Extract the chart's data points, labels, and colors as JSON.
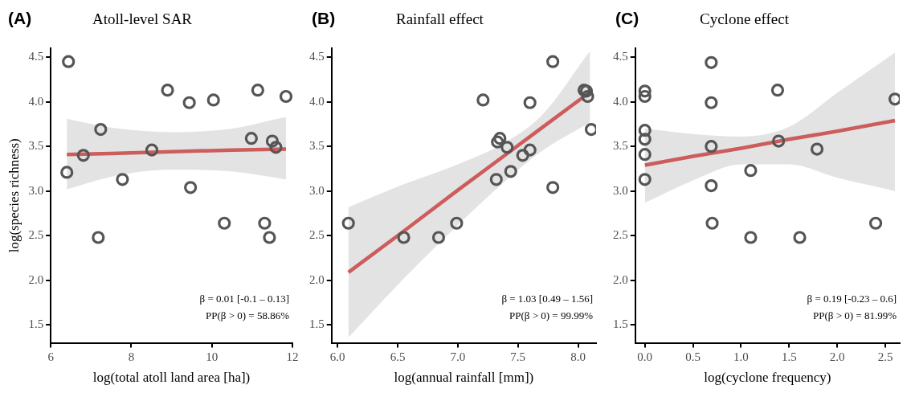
{
  "chart_data": [
    {
      "type": "scatter",
      "title": "Atoll-level SAR",
      "xlabel": "log(total atoll land area [ha])",
      "ylabel": "log(species richness)",
      "annotations": [
        "(A)",
        "β = 0.01 [-0.1 – 0.13]",
        "PP(β > 0) = 58.86%"
      ],
      "xlim": [
        6,
        12
      ],
      "xticks": [
        6,
        8,
        10,
        12
      ],
      "ylim": [
        1.3,
        4.6
      ],
      "yticks": [
        {
          "value": 1.5,
          "label": "1.5"
        },
        {
          "value": 2,
          "label": "2.0"
        },
        {
          "value": 2.5,
          "label": "2.5"
        },
        {
          "value": 3,
          "label": "3.0"
        },
        {
          "value": 3.5,
          "label": "3.5"
        },
        {
          "value": 4,
          "label": "4.0"
        },
        {
          "value": 4.5,
          "label": "4.5"
        }
      ],
      "legend": false,
      "marker": "circle",
      "series": [
        {
          "color": "#555555",
          "x": [
            6.44,
            6.4,
            6.81,
            7.24,
            7.18,
            7.78,
            8.51,
            8.9,
            9.44,
            9.47,
            10.04,
            10.31,
            10.98,
            11.14,
            11.31,
            11.43,
            11.5,
            11.59,
            11.84
          ],
          "values": [
            4.45,
            3.21,
            3.4,
            3.69,
            2.48,
            3.13,
            3.46,
            4.13,
            3.99,
            3.04,
            4.02,
            2.64,
            3.59,
            4.13,
            2.64,
            2.48,
            3.56,
            3.49,
            4.06
          ]
        },
        {
          "type": "line",
          "marker": "none",
          "color": "#cd5c5c",
          "x": [
            6.4,
            7.5,
            9,
            10.5,
            11.84
          ],
          "values": [
            3.41,
            3.42,
            3.44,
            3.46,
            3.47
          ],
          "lower": [
            3.02,
            3.16,
            3.24,
            3.22,
            3.13
          ],
          "upper": [
            3.81,
            3.71,
            3.66,
            3.7,
            3.83
          ]
        }
      ]
    },
    {
      "type": "scatter",
      "title": "Rainfall effect",
      "xlabel": "log(annual rainfall [mm])",
      "annotations": [
        "(B)",
        "β = 1.03 [0.49 – 1.56]",
        "PP(β > 0) = 99.99%"
      ],
      "xlim": [
        5.95,
        8.15
      ],
      "xticks": [
        {
          "value": 6,
          "label": "6.0"
        },
        {
          "value": 6.5,
          "label": "6.5"
        },
        {
          "value": 7,
          "label": "7.0"
        },
        {
          "value": 7.5,
          "label": "7.5"
        },
        {
          "value": 8,
          "label": "8.0"
        }
      ],
      "ylim": [
        1.3,
        4.6
      ],
      "yticks": [
        {
          "value": 1.5,
          "label": "1.5"
        },
        {
          "value": 2,
          "label": "2.0"
        },
        {
          "value": 2.5,
          "label": "2.5"
        },
        {
          "value": 3,
          "label": "3.0"
        },
        {
          "value": 3.5,
          "label": "3.5"
        },
        {
          "value": 4,
          "label": "4.0"
        },
        {
          "value": 4.5,
          "label": "4.5"
        }
      ],
      "legend": false,
      "marker": "circle",
      "series": [
        {
          "color": "#555555",
          "x": [
            6.09,
            6.55,
            6.84,
            6.99,
            7.21,
            7.32,
            7.33,
            7.35,
            7.41,
            7.44,
            7.54,
            7.6,
            7.6,
            7.79,
            7.79,
            8.05,
            8.07,
            8.08,
            8.11
          ],
          "values": [
            2.64,
            2.48,
            2.48,
            2.64,
            4.02,
            3.13,
            3.55,
            3.59,
            3.49,
            3.22,
            3.4,
            3.46,
            3.99,
            3.04,
            4.45,
            4.13,
            4.12,
            4.06,
            3.69
          ]
        },
        {
          "type": "line",
          "marker": "none",
          "color": "#cd5c5c",
          "x": [
            6.09,
            6.5,
            7.0,
            7.4,
            7.7,
            8.1
          ],
          "values": [
            2.09,
            2.5,
            3.01,
            3.41,
            3.71,
            4.11
          ],
          "lower": [
            1.36,
            1.95,
            2.62,
            3.12,
            3.45,
            3.77
          ],
          "upper": [
            2.82,
            3.05,
            3.3,
            3.55,
            3.85,
            4.57
          ]
        }
      ]
    },
    {
      "type": "scatter",
      "title": "Cyclone effect",
      "xlabel": "log(cyclone frequency)",
      "annotations": [
        "(C)",
        "β = 0.19 [-0.23 – 0.6]",
        "PP(β > 0) = 81.99%"
      ],
      "xlim": [
        -0.1,
        2.65
      ],
      "xticks": [
        {
          "value": 0,
          "label": "0.0"
        },
        {
          "value": 0.5,
          "label": "0.5"
        },
        {
          "value": 1,
          "label": "1.0"
        },
        {
          "value": 1.5,
          "label": "1.5"
        },
        {
          "value": 2,
          "label": "2.0"
        },
        {
          "value": 2.5,
          "label": "2.5"
        }
      ],
      "ylim": [
        1.3,
        4.6
      ],
      "yticks": [
        {
          "value": 1.5,
          "label": "1.5"
        },
        {
          "value": 2,
          "label": "2.0"
        },
        {
          "value": 2.5,
          "label": "2.5"
        },
        {
          "value": 3,
          "label": "3.0"
        },
        {
          "value": 3.5,
          "label": "3.5"
        },
        {
          "value": 4,
          "label": "4.0"
        },
        {
          "value": 4.5,
          "label": "4.5"
        }
      ],
      "legend": false,
      "marker": "circle",
      "series": [
        {
          "color": "#555555",
          "x": [
            0,
            0,
            0,
            0,
            0,
            0,
            0.69,
            0.69,
            0.69,
            0.69,
            0.7,
            1.1,
            1.1,
            1.38,
            1.39,
            1.61,
            1.79,
            2.4,
            2.6
          ],
          "values": [
            4.12,
            4.06,
            3.68,
            3.58,
            3.41,
            3.13,
            4.44,
            3.99,
            3.5,
            3.06,
            2.64,
            3.23,
            2.48,
            4.13,
            3.56,
            2.48,
            3.47,
            2.64,
            4.03
          ]
        },
        {
          "type": "line",
          "marker": "none",
          "color": "#cd5c5c",
          "x": [
            0,
            0.5,
            1,
            1.5,
            2,
            2.6
          ],
          "values": [
            3.29,
            3.39,
            3.48,
            3.58,
            3.67,
            3.79
          ],
          "lower": [
            2.87,
            3.12,
            3.3,
            3.3,
            3.15,
            3.0
          ],
          "upper": [
            3.7,
            3.64,
            3.61,
            3.72,
            4.1,
            4.55
          ]
        }
      ]
    }
  ]
}
